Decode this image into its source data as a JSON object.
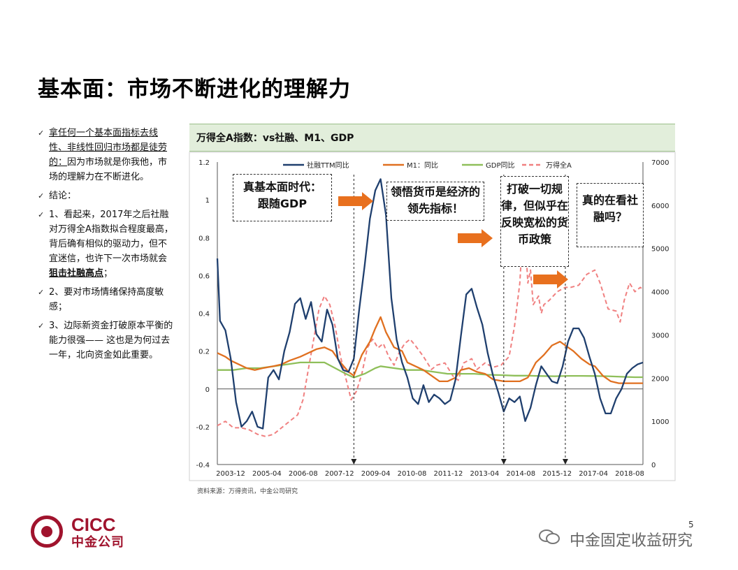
{
  "title": "基本面：市场不断进化的理解力",
  "bullets": [
    {
      "segments": [
        {
          "t": "拿任何一个基本面指标去线性、非线性回归市场都是徒劳的：",
          "u": true
        },
        {
          "t": "因为市场就是你我他，市场的理解力在不断进化。"
        }
      ]
    },
    {
      "segments": [
        {
          "t": "结论："
        }
      ]
    },
    {
      "segments": [
        {
          "t": "1、看起来，2017年之后社融对万得全A指数拟合程度最高，背后确有相似的驱动力，但不宜迷信，也许下一次市场就会"
        },
        {
          "t": "狙击社融高点",
          "u": true,
          "b": true
        },
        {
          "t": "；"
        }
      ]
    },
    {
      "segments": [
        {
          "t": "2、要对市场情绪保持高度敏感；"
        }
      ]
    },
    {
      "segments": [
        {
          "t": "3、边际新资金打破原本平衡的能力很强—— 这也是为何过去一年，北向资金如此重要。"
        }
      ]
    }
  ],
  "chart_header": "万得全A指数：vs社融、M1、GDP",
  "source": "资料来源：万得资讯，中金公司研究",
  "callouts": {
    "c1_line1": "真基本面时代：",
    "c1_line2": "跟随GDP",
    "c2": "领悟货币是经济的领先指标！",
    "c3": "打破一切规律，但似乎在反映宽松的货币政策",
    "c4": "真的在看社融吗？"
  },
  "logo": {
    "en": "CICC",
    "cn": "中金公司"
  },
  "page_number": "5",
  "watermark": "中金固定收益研究",
  "colors": {
    "tsf": "#1f3f6e",
    "m1": "#e07020",
    "gdp": "#8fbf5a",
    "wind": "#f08080",
    "arrow": "#e8701e",
    "header_bg": "#e2eedb"
  },
  "chart_data": {
    "type": "line",
    "x_ticks": [
      "2003-12",
      "2005-04",
      "2006-08",
      "2007-12",
      "2009-04",
      "2010-08",
      "2011-12",
      "2013-04",
      "2014-08",
      "2015-12",
      "2017-04",
      "2018-08"
    ],
    "left_axis": {
      "min": -0.4,
      "max": 1.2,
      "ticks": [
        "1.2",
        "1",
        "0.8",
        "0.6",
        "0.4",
        "0.2",
        "0",
        "-0.2",
        "-0.4"
      ]
    },
    "right_axis": {
      "min": 0,
      "max": 7000,
      "ticks": [
        "7000",
        "6000",
        "5000",
        "4000",
        "3000",
        "2000",
        "1000",
        "0"
      ]
    },
    "x_range": [
      2003.9,
      2019.8
    ],
    "vlines": [
      2009.0,
      2014.6,
      2016.9
    ],
    "series": [
      {
        "name": "社融TTM同比",
        "axis": "left",
        "style": "solid",
        "color": "#1f3f6e",
        "points": [
          [
            2003.9,
            0.69
          ],
          [
            2004.0,
            0.36
          ],
          [
            2004.2,
            0.31
          ],
          [
            2004.4,
            0.16
          ],
          [
            2004.6,
            -0.07
          ],
          [
            2004.8,
            -0.2
          ],
          [
            2005.0,
            -0.17
          ],
          [
            2005.2,
            -0.12
          ],
          [
            2005.4,
            -0.2
          ],
          [
            2005.6,
            -0.21
          ],
          [
            2005.8,
            0.06
          ],
          [
            2006.0,
            0.1
          ],
          [
            2006.2,
            0.05
          ],
          [
            2006.4,
            0.2
          ],
          [
            2006.6,
            0.3
          ],
          [
            2006.8,
            0.45
          ],
          [
            2007.0,
            0.48
          ],
          [
            2007.2,
            0.37
          ],
          [
            2007.4,
            0.46
          ],
          [
            2007.6,
            0.29
          ],
          [
            2007.8,
            0.25
          ],
          [
            2008.0,
            0.42
          ],
          [
            2008.2,
            0.34
          ],
          [
            2008.4,
            0.16
          ],
          [
            2008.6,
            0.1
          ],
          [
            2008.8,
            0.09
          ],
          [
            2009.0,
            0.16
          ],
          [
            2009.2,
            0.42
          ],
          [
            2009.4,
            0.65
          ],
          [
            2009.6,
            0.9
          ],
          [
            2009.8,
            1.05
          ],
          [
            2010.0,
            1.11
          ],
          [
            2010.2,
            0.92
          ],
          [
            2010.4,
            0.48
          ],
          [
            2010.6,
            0.26
          ],
          [
            2010.8,
            0.14
          ],
          [
            2011.0,
            0.06
          ],
          [
            2011.2,
            -0.05
          ],
          [
            2011.4,
            -0.08
          ],
          [
            2011.6,
            0.02
          ],
          [
            2011.8,
            -0.07
          ],
          [
            2012.0,
            -0.03
          ],
          [
            2012.2,
            -0.05
          ],
          [
            2012.4,
            -0.08
          ],
          [
            2012.6,
            -0.06
          ],
          [
            2012.8,
            0.05
          ],
          [
            2013.0,
            0.28
          ],
          [
            2013.2,
            0.5
          ],
          [
            2013.4,
            0.53
          ],
          [
            2013.6,
            0.43
          ],
          [
            2013.8,
            0.34
          ],
          [
            2014.0,
            0.19
          ],
          [
            2014.2,
            0.07
          ],
          [
            2014.4,
            -0.02
          ],
          [
            2014.6,
            -0.12
          ],
          [
            2014.8,
            -0.05
          ],
          [
            2015.0,
            -0.07
          ],
          [
            2015.2,
            -0.04
          ],
          [
            2015.4,
            -0.17
          ],
          [
            2015.6,
            -0.1
          ],
          [
            2015.8,
            0.02
          ],
          [
            2016.0,
            0.12
          ],
          [
            2016.2,
            0.08
          ],
          [
            2016.4,
            0.04
          ],
          [
            2016.6,
            0.03
          ],
          [
            2016.8,
            0.12
          ],
          [
            2017.0,
            0.25
          ],
          [
            2017.2,
            0.32
          ],
          [
            2017.4,
            0.32
          ],
          [
            2017.6,
            0.27
          ],
          [
            2017.8,
            0.17
          ],
          [
            2018.0,
            0.08
          ],
          [
            2018.2,
            -0.05
          ],
          [
            2018.4,
            -0.13
          ],
          [
            2018.6,
            -0.13
          ],
          [
            2018.8,
            -0.05
          ],
          [
            2019.0,
            0.0
          ],
          [
            2019.2,
            0.08
          ],
          [
            2019.4,
            0.11
          ],
          [
            2019.6,
            0.13
          ],
          [
            2019.8,
            0.14
          ]
        ]
      },
      {
        "name": "M1：同比",
        "axis": "left",
        "style": "solid",
        "color": "#e07020",
        "points": [
          [
            2003.9,
            0.19
          ],
          [
            2004.2,
            0.17
          ],
          [
            2004.4,
            0.15
          ],
          [
            2004.7,
            0.13
          ],
          [
            2005.0,
            0.11
          ],
          [
            2005.3,
            0.1
          ],
          [
            2005.6,
            0.11
          ],
          [
            2006.0,
            0.12
          ],
          [
            2006.3,
            0.13
          ],
          [
            2006.6,
            0.15
          ],
          [
            2007.0,
            0.17
          ],
          [
            2007.3,
            0.19
          ],
          [
            2007.6,
            0.21
          ],
          [
            2007.9,
            0.22
          ],
          [
            2008.2,
            0.2
          ],
          [
            2008.5,
            0.14
          ],
          [
            2008.8,
            0.09
          ],
          [
            2009.0,
            0.07
          ],
          [
            2009.3,
            0.18
          ],
          [
            2009.6,
            0.25
          ],
          [
            2009.8,
            0.32
          ],
          [
            2010.0,
            0.38
          ],
          [
            2010.2,
            0.3
          ],
          [
            2010.5,
            0.22
          ],
          [
            2010.8,
            0.2
          ],
          [
            2011.0,
            0.14
          ],
          [
            2011.3,
            0.12
          ],
          [
            2011.6,
            0.1
          ],
          [
            2011.9,
            0.07
          ],
          [
            2012.2,
            0.04
          ],
          [
            2012.5,
            0.04
          ],
          [
            2012.8,
            0.06
          ],
          [
            2013.0,
            0.1
          ],
          [
            2013.3,
            0.11
          ],
          [
            2013.6,
            0.09
          ],
          [
            2013.9,
            0.08
          ],
          [
            2014.2,
            0.05
          ],
          [
            2014.6,
            0.04
          ],
          [
            2014.9,
            0.04
          ],
          [
            2015.2,
            0.04
          ],
          [
            2015.5,
            0.06
          ],
          [
            2015.8,
            0.14
          ],
          [
            2016.1,
            0.18
          ],
          [
            2016.4,
            0.23
          ],
          [
            2016.7,
            0.25
          ],
          [
            2016.9,
            0.23
          ],
          [
            2017.2,
            0.2
          ],
          [
            2017.5,
            0.16
          ],
          [
            2017.8,
            0.13
          ],
          [
            2018.0,
            0.12
          ],
          [
            2018.3,
            0.07
          ],
          [
            2018.6,
            0.04
          ],
          [
            2018.9,
            0.03
          ],
          [
            2019.2,
            0.03
          ],
          [
            2019.5,
            0.03
          ],
          [
            2019.8,
            0.03
          ]
        ]
      },
      {
        "name": "GDP同比",
        "axis": "left",
        "style": "solid",
        "color": "#8fbf5a",
        "points": [
          [
            2003.9,
            0.1
          ],
          [
            2004.5,
            0.1
          ],
          [
            2005.0,
            0.11
          ],
          [
            2005.5,
            0.11
          ],
          [
            2006.0,
            0.12
          ],
          [
            2006.5,
            0.13
          ],
          [
            2007.0,
            0.14
          ],
          [
            2007.5,
            0.14
          ],
          [
            2007.9,
            0.14
          ],
          [
            2008.3,
            0.11
          ],
          [
            2008.7,
            0.08
          ],
          [
            2009.0,
            0.06
          ],
          [
            2009.4,
            0.08
          ],
          [
            2009.8,
            0.11
          ],
          [
            2010.0,
            0.12
          ],
          [
            2010.5,
            0.11
          ],
          [
            2011.0,
            0.1
          ],
          [
            2011.5,
            0.1
          ],
          [
            2012.0,
            0.09
          ],
          [
            2012.5,
            0.08
          ],
          [
            2013.0,
            0.08
          ],
          [
            2013.5,
            0.08
          ],
          [
            2014.0,
            0.075
          ],
          [
            2014.5,
            0.073
          ],
          [
            2015.0,
            0.07
          ],
          [
            2015.5,
            0.07
          ],
          [
            2016.0,
            0.068
          ],
          [
            2016.5,
            0.067
          ],
          [
            2017.0,
            0.069
          ],
          [
            2017.5,
            0.069
          ],
          [
            2018.0,
            0.068
          ],
          [
            2018.5,
            0.067
          ],
          [
            2019.0,
            0.064
          ],
          [
            2019.5,
            0.062
          ],
          [
            2019.8,
            0.062
          ]
        ]
      },
      {
        "name": "万得全A",
        "axis": "right",
        "style": "dashed",
        "color": "#f08080",
        "points": [
          [
            2003.9,
            900
          ],
          [
            2004.2,
            1000
          ],
          [
            2004.5,
            850
          ],
          [
            2004.8,
            850
          ],
          [
            2005.1,
            800
          ],
          [
            2005.4,
            700
          ],
          [
            2005.7,
            650
          ],
          [
            2006.0,
            700
          ],
          [
            2006.3,
            850
          ],
          [
            2006.6,
            1000
          ],
          [
            2006.9,
            1150
          ],
          [
            2007.1,
            1500
          ],
          [
            2007.3,
            2200
          ],
          [
            2007.5,
            2900
          ],
          [
            2007.7,
            3600
          ],
          [
            2007.9,
            3900
          ],
          [
            2008.1,
            3700
          ],
          [
            2008.3,
            3200
          ],
          [
            2008.5,
            2500
          ],
          [
            2008.7,
            2000
          ],
          [
            2008.9,
            1500
          ],
          [
            2009.1,
            1700
          ],
          [
            2009.3,
            2100
          ],
          [
            2009.5,
            2700
          ],
          [
            2009.7,
            2900
          ],
          [
            2009.9,
            2700
          ],
          [
            2010.1,
            2800
          ],
          [
            2010.3,
            2500
          ],
          [
            2010.5,
            2300
          ],
          [
            2010.7,
            2600
          ],
          [
            2010.9,
            2800
          ],
          [
            2011.1,
            2900
          ],
          [
            2011.3,
            2750
          ],
          [
            2011.6,
            2500
          ],
          [
            2011.9,
            2200
          ],
          [
            2012.1,
            2300
          ],
          [
            2012.4,
            2350
          ],
          [
            2012.7,
            2050
          ],
          [
            2012.9,
            1950
          ],
          [
            2013.1,
            2350
          ],
          [
            2013.4,
            2450
          ],
          [
            2013.6,
            2200
          ],
          [
            2013.9,
            2350
          ],
          [
            2014.2,
            2250
          ],
          [
            2014.5,
            2300
          ],
          [
            2014.8,
            2500
          ],
          [
            2015.0,
            3200
          ],
          [
            2015.2,
            4200
          ],
          [
            2015.35,
            5800
          ],
          [
            2015.5,
            4200
          ],
          [
            2015.6,
            4500
          ],
          [
            2015.7,
            3700
          ],
          [
            2015.9,
            3900
          ],
          [
            2016.0,
            3500
          ],
          [
            2016.1,
            3700
          ],
          [
            2016.3,
            3800
          ],
          [
            2016.6,
            4000
          ],
          [
            2016.9,
            4100
          ],
          [
            2017.1,
            4100
          ],
          [
            2017.4,
            4150
          ],
          [
            2017.7,
            4400
          ],
          [
            2018.0,
            4500
          ],
          [
            2018.2,
            4200
          ],
          [
            2018.5,
            3600
          ],
          [
            2018.8,
            3550
          ],
          [
            2018.95,
            3300
          ],
          [
            2019.1,
            3800
          ],
          [
            2019.3,
            4200
          ],
          [
            2019.5,
            4000
          ],
          [
            2019.7,
            4100
          ],
          [
            2019.8,
            4050
          ]
        ]
      }
    ]
  }
}
